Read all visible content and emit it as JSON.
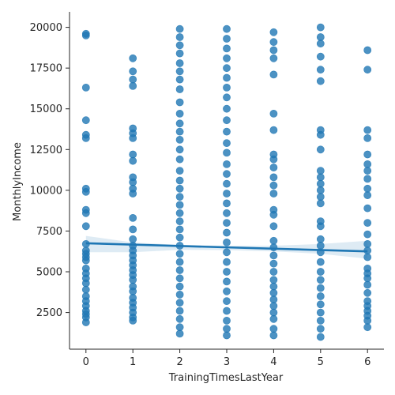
{
  "chart_data": {
    "type": "scatter",
    "title": "",
    "xlabel": "TrainingTimesLastYear",
    "ylabel": "MonthlyIncome",
    "xlim": [
      -0.35,
      6.35
    ],
    "ylim": [
      250,
      20950
    ],
    "x_ticks": [
      "0",
      "1",
      "2",
      "3",
      "4",
      "5",
      "6"
    ],
    "y_ticks": [
      "2500",
      "5000",
      "7500",
      "10000",
      "12500",
      "15000",
      "17500",
      "20000"
    ],
    "grid": false,
    "point_color": "#1f77b4",
    "regression": {
      "x": [
        0,
        6
      ],
      "y": [
        6750,
        6250
      ],
      "ci_upper": [
        7200,
        6800,
        6650,
        6580,
        6600,
        6700,
        6900
      ],
      "ci_lower": [
        6200,
        6200,
        6350,
        6330,
        6250,
        6100,
        5800
      ]
    },
    "series": [
      {
        "values": [
          [
            0,
            19600
          ],
          [
            0,
            19500
          ],
          [
            0,
            16300
          ],
          [
            0,
            14300
          ],
          [
            0,
            13400
          ],
          [
            0,
            13200
          ],
          [
            0,
            10100
          ],
          [
            0,
            9900
          ],
          [
            0,
            8800
          ],
          [
            0,
            8600
          ],
          [
            0,
            7800
          ],
          [
            0,
            6700
          ],
          [
            0,
            6300
          ],
          [
            0,
            6100
          ],
          [
            0,
            5900
          ],
          [
            0,
            5700
          ],
          [
            0,
            5200
          ],
          [
            0,
            4900
          ],
          [
            0,
            4600
          ],
          [
            0,
            4300
          ],
          [
            0,
            3900
          ],
          [
            0,
            3500
          ],
          [
            0,
            3200
          ],
          [
            0,
            2900
          ],
          [
            0,
            2600
          ],
          [
            0,
            2400
          ],
          [
            0,
            2200
          ],
          [
            0,
            1900
          ],
          [
            1,
            18100
          ],
          [
            1,
            17300
          ],
          [
            1,
            16800
          ],
          [
            1,
            16400
          ],
          [
            1,
            13800
          ],
          [
            1,
            13500
          ],
          [
            1,
            13200
          ],
          [
            1,
            12200
          ],
          [
            1,
            11800
          ],
          [
            1,
            10800
          ],
          [
            1,
            10500
          ],
          [
            1,
            10100
          ],
          [
            1,
            9800
          ],
          [
            1,
            8300
          ],
          [
            1,
            7600
          ],
          [
            1,
            7000
          ],
          [
            1,
            6600
          ],
          [
            1,
            6300
          ],
          [
            1,
            6000
          ],
          [
            1,
            5700
          ],
          [
            1,
            5400
          ],
          [
            1,
            5100
          ],
          [
            1,
            4800
          ],
          [
            1,
            4500
          ],
          [
            1,
            4100
          ],
          [
            1,
            3800
          ],
          [
            1,
            3400
          ],
          [
            1,
            3100
          ],
          [
            1,
            2800
          ],
          [
            1,
            2500
          ],
          [
            1,
            2200
          ],
          [
            1,
            2000
          ],
          [
            2,
            19900
          ],
          [
            2,
            19400
          ],
          [
            2,
            18900
          ],
          [
            2,
            18400
          ],
          [
            2,
            17800
          ],
          [
            2,
            17300
          ],
          [
            2,
            16800
          ],
          [
            2,
            16200
          ],
          [
            2,
            15400
          ],
          [
            2,
            14700
          ],
          [
            2,
            14100
          ],
          [
            2,
            13600
          ],
          [
            2,
            13100
          ],
          [
            2,
            12500
          ],
          [
            2,
            11900
          ],
          [
            2,
            11200
          ],
          [
            2,
            10600
          ],
          [
            2,
            10100
          ],
          [
            2,
            9600
          ],
          [
            2,
            9100
          ],
          [
            2,
            8600
          ],
          [
            2,
            8100
          ],
          [
            2,
            7600
          ],
          [
            2,
            7100
          ],
          [
            2,
            6600
          ],
          [
            2,
            6100
          ],
          [
            2,
            5600
          ],
          [
            2,
            5100
          ],
          [
            2,
            4600
          ],
          [
            2,
            4100
          ],
          [
            2,
            3600
          ],
          [
            2,
            3100
          ],
          [
            2,
            2600
          ],
          [
            2,
            2100
          ],
          [
            2,
            1600
          ],
          [
            2,
            1200
          ],
          [
            3,
            19900
          ],
          [
            3,
            19300
          ],
          [
            3,
            18700
          ],
          [
            3,
            18100
          ],
          [
            3,
            17500
          ],
          [
            3,
            16900
          ],
          [
            3,
            16300
          ],
          [
            3,
            15700
          ],
          [
            3,
            15000
          ],
          [
            3,
            14300
          ],
          [
            3,
            13600
          ],
          [
            3,
            12900
          ],
          [
            3,
            12300
          ],
          [
            3,
            11600
          ],
          [
            3,
            11000
          ],
          [
            3,
            10400
          ],
          [
            3,
            9800
          ],
          [
            3,
            9200
          ],
          [
            3,
            8600
          ],
          [
            3,
            8000
          ],
          [
            3,
            7400
          ],
          [
            3,
            6800
          ],
          [
            3,
            6200
          ],
          [
            3,
            5600
          ],
          [
            3,
            5000
          ],
          [
            3,
            4400
          ],
          [
            3,
            3800
          ],
          [
            3,
            3200
          ],
          [
            3,
            2600
          ],
          [
            3,
            2000
          ],
          [
            3,
            1500
          ],
          [
            3,
            1100
          ],
          [
            4,
            19700
          ],
          [
            4,
            19100
          ],
          [
            4,
            18600
          ],
          [
            4,
            18100
          ],
          [
            4,
            17100
          ],
          [
            4,
            14700
          ],
          [
            4,
            13700
          ],
          [
            4,
            12200
          ],
          [
            4,
            11900
          ],
          [
            4,
            11400
          ],
          [
            4,
            10800
          ],
          [
            4,
            10300
          ],
          [
            4,
            9800
          ],
          [
            4,
            8800
          ],
          [
            4,
            8500
          ],
          [
            4,
            7800
          ],
          [
            4,
            6900
          ],
          [
            4,
            6500
          ],
          [
            4,
            6000
          ],
          [
            4,
            5500
          ],
          [
            4,
            5000
          ],
          [
            4,
            4500
          ],
          [
            4,
            4100
          ],
          [
            4,
            3700
          ],
          [
            4,
            3300
          ],
          [
            4,
            2900
          ],
          [
            4,
            2500
          ],
          [
            4,
            2100
          ],
          [
            4,
            1500
          ],
          [
            4,
            1100
          ],
          [
            5,
            20000
          ],
          [
            5,
            19400
          ],
          [
            5,
            19000
          ],
          [
            5,
            18200
          ],
          [
            5,
            17400
          ],
          [
            5,
            16700
          ],
          [
            5,
            13700
          ],
          [
            5,
            13400
          ],
          [
            5,
            12500
          ],
          [
            5,
            11200
          ],
          [
            5,
            10800
          ],
          [
            5,
            10400
          ],
          [
            5,
            10000
          ],
          [
            5,
            9600
          ],
          [
            5,
            9200
          ],
          [
            5,
            8100
          ],
          [
            5,
            7800
          ],
          [
            5,
            7000
          ],
          [
            5,
            6600
          ],
          [
            5,
            6200
          ],
          [
            5,
            5600
          ],
          [
            5,
            5000
          ],
          [
            5,
            4500
          ],
          [
            5,
            4000
          ],
          [
            5,
            3500
          ],
          [
            5,
            3000
          ],
          [
            5,
            2500
          ],
          [
            5,
            2000
          ],
          [
            5,
            1500
          ],
          [
            5,
            1000
          ],
          [
            6,
            18600
          ],
          [
            6,
            17400
          ],
          [
            6,
            13700
          ],
          [
            6,
            13200
          ],
          [
            6,
            12200
          ],
          [
            6,
            11600
          ],
          [
            6,
            11200
          ],
          [
            6,
            10700
          ],
          [
            6,
            10100
          ],
          [
            6,
            9700
          ],
          [
            6,
            8900
          ],
          [
            6,
            8000
          ],
          [
            6,
            7300
          ],
          [
            6,
            6700
          ],
          [
            6,
            6300
          ],
          [
            6,
            5900
          ],
          [
            6,
            5200
          ],
          [
            6,
            4900
          ],
          [
            6,
            4600
          ],
          [
            6,
            4200
          ],
          [
            6,
            3700
          ],
          [
            6,
            3200
          ],
          [
            6,
            2900
          ],
          [
            6,
            2600
          ],
          [
            6,
            2300
          ],
          [
            6,
            2000
          ],
          [
            6,
            1600
          ]
        ]
      }
    ]
  }
}
